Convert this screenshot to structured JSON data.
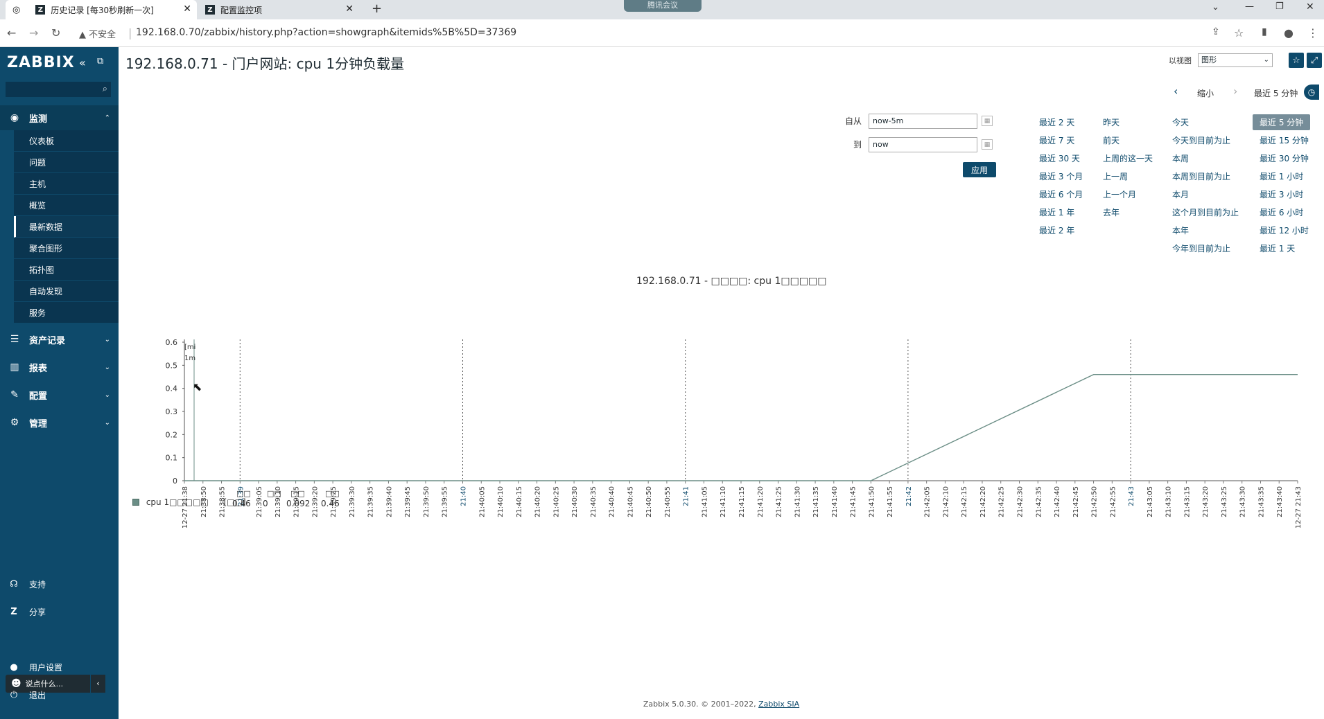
{
  "browser": {
    "tabs": [
      {
        "label": "历史记录 [每30秒刷新一次]"
      },
      {
        "label": "配置监控项"
      }
    ],
    "security_label": "不安全",
    "url": "192.168.0.70/zabbix/history.php?action=showgraph&itemids%5B%5D=37369",
    "meeting_badge": "腾讯会议"
  },
  "sidebar": {
    "logo": "ZABBIX",
    "search_placeholder": "",
    "sections": [
      {
        "label": "监测",
        "icon": "eye-icon"
      },
      {
        "label": "资产记录",
        "icon": "list-icon"
      },
      {
        "label": "报表",
        "icon": "chart-icon"
      },
      {
        "label": "配置",
        "icon": "wrench-icon"
      },
      {
        "label": "管理",
        "icon": "gear-icon"
      }
    ],
    "monitoring_items": [
      {
        "label": "仪表板"
      },
      {
        "label": "问题"
      },
      {
        "label": "主机"
      },
      {
        "label": "概览"
      },
      {
        "label": "最新数据"
      },
      {
        "label": "聚合图形"
      },
      {
        "label": "拓扑图"
      },
      {
        "label": "自动发现"
      },
      {
        "label": "服务"
      }
    ],
    "bottom": [
      {
        "label": "支持"
      },
      {
        "label": "分享"
      },
      {
        "label": "用户设置"
      },
      {
        "label": "退出"
      }
    ],
    "chat_placeholder": "说点什么..."
  },
  "page": {
    "title": "192.168.0.71 - 门户网站: cpu 1分钟负载量",
    "view_as_label": "以视图",
    "view_as_value": "图形"
  },
  "timebar": {
    "zoom_out": "缩小",
    "current": "最近 5 分钟"
  },
  "filter": {
    "from_label": "自从",
    "from_value": "now-5m",
    "to_label": "到",
    "to_value": "now",
    "apply_label": "应用",
    "quick": [
      [
        "最近 2 天",
        "最近 7 天",
        "最近 30 天",
        "最近 3 个月",
        "最近 6 个月",
        "最近 1 年",
        "最近 2 年"
      ],
      [
        "昨天",
        "前天",
        "上周的这一天",
        "上一周",
        "上一个月",
        "去年"
      ],
      [
        "今天",
        "今天到目前为止",
        "本周",
        "本周到目前为止",
        "本月",
        "这个月到目前为止",
        "本年",
        "今年到目前为止"
      ],
      [
        "最近 5 分钟",
        "最近 15 分钟",
        "最近 30 分钟",
        "最近 1 小时",
        "最近 3 小时",
        "最近 6 小时",
        "最近 12 小时",
        "最近 1 天"
      ]
    ]
  },
  "chart_data": {
    "type": "line",
    "title": "192.168.0.71 - □□□□: cpu 1□□□□□",
    "ylim": [
      0,
      0.6
    ],
    "yticks": [
      "0",
      "0.1",
      "0.2",
      "0.3",
      "0.4",
      "0.5",
      "0.6"
    ],
    "xticks": [
      "12-27 21:38",
      "21:38:50",
      "21:38:55",
      "21:39",
      "21:39:05",
      "21:39:10",
      "21:39:15",
      "21:39:20",
      "21:39:25",
      "21:39:30",
      "21:39:35",
      "21:39:40",
      "21:39:45",
      "21:39:50",
      "21:39:55",
      "21:40",
      "21:40:05",
      "21:40:10",
      "21:40:15",
      "21:40:20",
      "21:40:25",
      "21:40:30",
      "21:40:35",
      "21:40:40",
      "21:40:45",
      "21:40:50",
      "21:40:55",
      "21:41",
      "21:41:05",
      "21:41:10",
      "21:41:15",
      "21:41:20",
      "21:41:25",
      "21:41:30",
      "21:41:35",
      "21:41:40",
      "21:41:45",
      "21:41:50",
      "21:41:55",
      "21:42",
      "21:42:05",
      "21:42:10",
      "21:42:15",
      "21:42:20",
      "21:42:25",
      "21:42:30",
      "21:42:35",
      "21:42:40",
      "21:42:45",
      "21:42:50",
      "21:42:55",
      "21:43",
      "21:43:05",
      "21:43:10",
      "21:43:15",
      "21:43:20",
      "21:43:25",
      "21:43:30",
      "21:43:35",
      "21:43:40",
      "12-27 21:43"
    ],
    "major_ticks": [
      "21:39",
      "21:40",
      "21:41",
      "21:42",
      "21:43"
    ],
    "series": [
      {
        "name": "cpu 1□□□□□",
        "color": "#6b8e86",
        "x": [
          "21:38:44",
          "21:41:49",
          "21:42:49",
          "21:43:44"
        ],
        "values": [
          0,
          0,
          0.46,
          0.46
        ]
      }
    ],
    "left_note": [
      "[mi",
      "1m"
    ],
    "legend": {
      "name": "cpu 1□□□□□",
      "func": "[□□]",
      "headers": [
        "□□",
        "□□",
        "□□",
        "□□"
      ],
      "values": [
        "0.46",
        "0",
        "0.092",
        "0.46"
      ]
    }
  },
  "footer": {
    "text": "Zabbix 5.0.30. © 2001–2022, ",
    "link": "Zabbix SIA"
  }
}
